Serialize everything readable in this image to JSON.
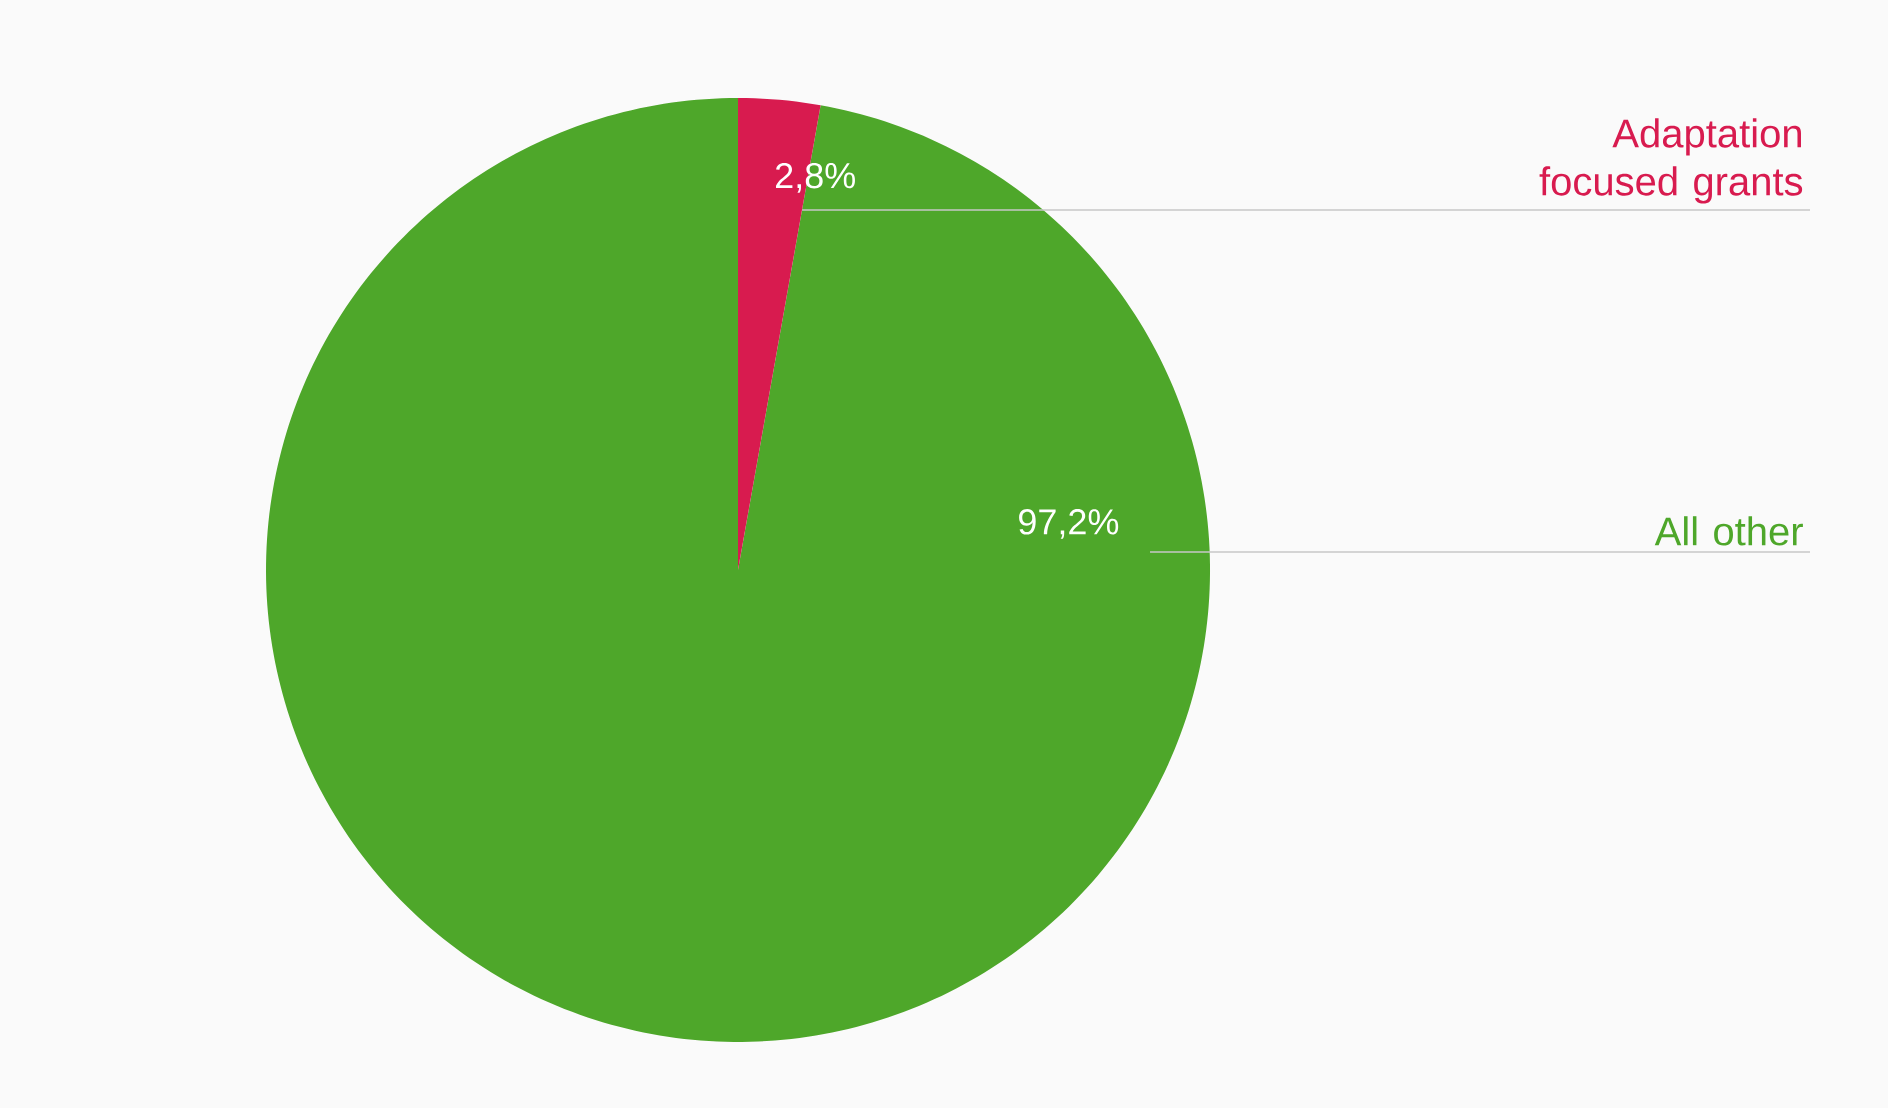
{
  "chart_data": {
    "type": "pie",
    "categories": [
      "Adaptation focused grants",
      "All other"
    ],
    "values": [
      2.8,
      97.2
    ],
    "value_labels": [
      "2,8%",
      "97,2%"
    ],
    "colors": [
      "#d81b4f",
      "#4ea72a"
    ]
  }
}
